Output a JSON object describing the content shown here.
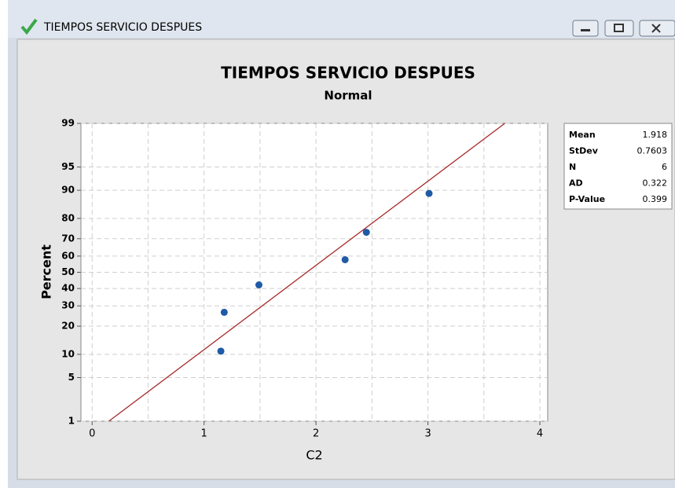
{
  "window": {
    "title": "TIEMPOS SERVICIO DESPUES"
  },
  "chart_data": {
    "type": "probability",
    "title": "TIEMPOS SERVICIO DESPUES",
    "subtitle": "Normal",
    "x_label": "C2",
    "y_label": "Percent",
    "x": [
      1.15,
      1.18,
      1.49,
      2.26,
      2.45,
      3.01
    ],
    "values": [
      10.9,
      26.6,
      42.2,
      57.8,
      73.4,
      89.1
    ],
    "color": "#1f5aa6",
    "fit_color": "#a52a2a",
    "xlim": [
      -0.1,
      4.07
    ],
    "xticks": [
      0,
      1,
      2,
      3,
      4
    ],
    "xminor": [
      0.5,
      1.5,
      2.5,
      3.5
    ],
    "ylim": [
      1,
      99
    ],
    "yscale": "probability",
    "yticks": [
      1,
      5,
      10,
      20,
      30,
      40,
      50,
      60,
      70,
      80,
      90,
      95,
      99
    ],
    "grid": true,
    "stats": [
      {
        "label": "Mean",
        "value": 1.918
      },
      {
        "label": "StDev",
        "value": 0.7603
      },
      {
        "label": "N",
        "value": 6
      },
      {
        "label": "AD",
        "value": 0.322
      },
      {
        "label": "P-Value",
        "value": 0.399
      }
    ]
  }
}
